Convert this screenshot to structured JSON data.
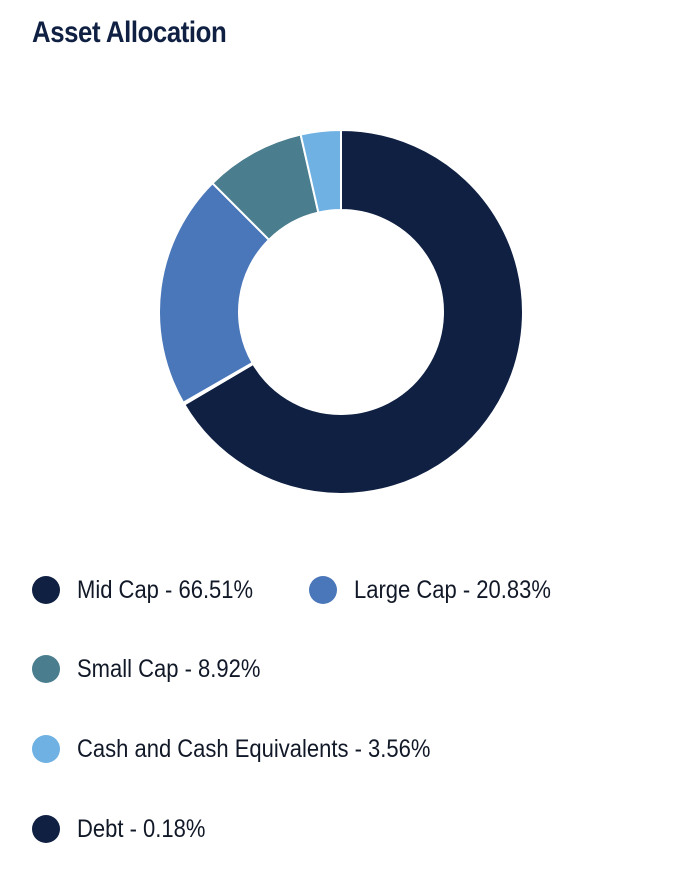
{
  "title": "Asset Allocation",
  "colors": {
    "title": "#0f2043",
    "separator": "#ffffff"
  },
  "chart_data": {
    "type": "pie",
    "title": "Asset Allocation",
    "style": "donut",
    "start": "12 o'clock, clockwise",
    "legend_placement": "bottom",
    "slices": [
      {
        "label": "Mid Cap",
        "value": 66.51,
        "color": "#0f2043"
      },
      {
        "label": "Debt",
        "value": 0.18,
        "color": "#0f2043"
      },
      {
        "label": "Large Cap",
        "value": 20.83,
        "color": "#4a77ba"
      },
      {
        "label": "Small Cap",
        "value": 8.92,
        "color": "#4a7d8e"
      },
      {
        "label": "Cash and Cash Equivalents",
        "value": 3.56,
        "color": "#6eb1e2"
      }
    ]
  },
  "legend": [
    {
      "text": "Mid Cap - 66.51%",
      "color": "#0f2043"
    },
    {
      "text": "Large Cap - 20.83%",
      "color": "#4a77ba"
    },
    {
      "text": "Small Cap - 8.92%",
      "color": "#4a7d8e"
    },
    {
      "text": "Cash and Cash Equivalents - 3.56%",
      "color": "#6eb1e2"
    },
    {
      "text": "Debt - 0.18%",
      "color": "#0f2043"
    }
  ]
}
